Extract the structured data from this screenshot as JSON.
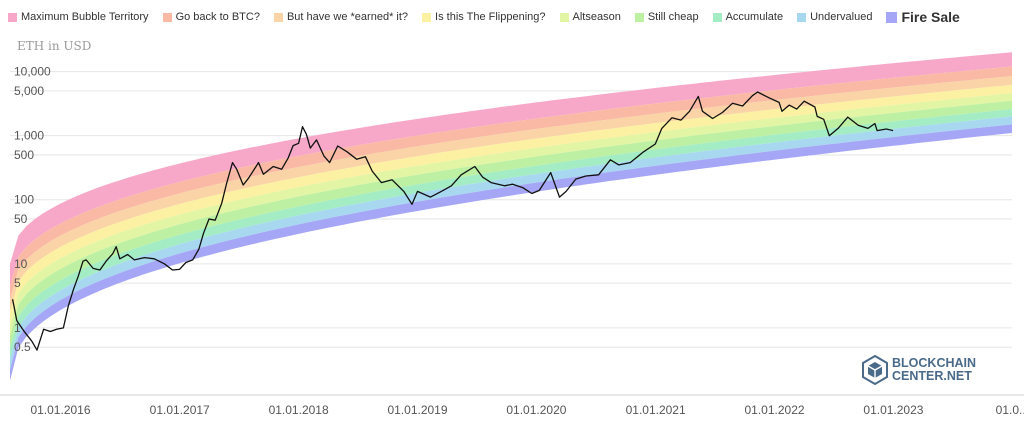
{
  "chart_data": {
    "type": "line",
    "title": "",
    "ylabel": "ETH in USD",
    "yscale": "log",
    "ylim": [
      0.1,
      40000
    ],
    "xlim": [
      "2015-07-30",
      "2023-12-31"
    ],
    "y_ticks": [
      {
        "v": 10000,
        "label": "10,000"
      },
      {
        "v": 5000,
        "label": "5,000"
      },
      {
        "v": 1000,
        "label": "1,000"
      },
      {
        "v": 500,
        "label": "500"
      },
      {
        "v": 100,
        "label": "100"
      },
      {
        "v": 50,
        "label": "50"
      },
      {
        "v": 10,
        "label": "10"
      },
      {
        "v": 5,
        "label": "5"
      },
      {
        "v": 1,
        "label": "1"
      },
      {
        "v": 0.5,
        "label": "0.5"
      }
    ],
    "x_ticks": [
      {
        "date": "2016-01-01",
        "label": "01.01.2016"
      },
      {
        "date": "2017-01-01",
        "label": "01.01.2017"
      },
      {
        "date": "2018-01-01",
        "label": "01.01.2018"
      },
      {
        "date": "2019-01-01",
        "label": "01.01.2019"
      },
      {
        "date": "2020-01-01",
        "label": "01.01.2020"
      },
      {
        "date": "2021-01-01",
        "label": "01.01.2021"
      },
      {
        "date": "2022-01-01",
        "label": "01.01.2022"
      },
      {
        "date": "2023-01-01",
        "label": "01.01.2023"
      },
      {
        "date": "2024-01-01",
        "label": "01.0..."
      }
    ],
    "bands": [
      {
        "name": "Maximum Bubble Territory",
        "color": "#f7a8c9",
        "upper": [
          [
            0.0,
            10.0
          ],
          [
            1.0,
            20000
          ]
        ],
        "lower": [
          [
            0.0,
            4.5
          ],
          [
            1.0,
            12000
          ]
        ]
      },
      {
        "name": "Go back to BTC?",
        "color": "#f9b9a5",
        "upper": [
          [
            0.0,
            4.5
          ],
          [
            1.0,
            12000
          ]
        ],
        "lower": [
          [
            0.0,
            2.8
          ],
          [
            1.0,
            8500
          ]
        ]
      },
      {
        "name": "But have we *earned* it?",
        "color": "#fad3a6",
        "upper": [
          [
            0.0,
            2.8
          ],
          [
            1.0,
            8500
          ]
        ],
        "lower": [
          [
            0.0,
            1.8
          ],
          [
            1.0,
            6200
          ]
        ]
      },
      {
        "name": "Is this The Flippening?",
        "color": "#fcf0a3",
        "upper": [
          [
            0.0,
            1.8
          ],
          [
            1.0,
            6200
          ]
        ],
        "lower": [
          [
            0.0,
            1.15
          ],
          [
            1.0,
            4600
          ]
        ]
      },
      {
        "name": "Altseason",
        "color": "#e2f5a4",
        "upper": [
          [
            0.0,
            1.15
          ],
          [
            1.0,
            4600
          ]
        ],
        "lower": [
          [
            0.0,
            0.75
          ],
          [
            1.0,
            3500
          ]
        ]
      },
      {
        "name": "Still cheap",
        "color": "#bdf0a3",
        "upper": [
          [
            0.0,
            0.75
          ],
          [
            1.0,
            3500
          ]
        ],
        "lower": [
          [
            0.0,
            0.48
          ],
          [
            1.0,
            2600
          ]
        ]
      },
      {
        "name": "Accumulate",
        "color": "#a3ecc4",
        "upper": [
          [
            0.0,
            0.48
          ],
          [
            1.0,
            2600
          ]
        ],
        "lower": [
          [
            0.0,
            0.32
          ],
          [
            1.0,
            2000
          ]
        ]
      },
      {
        "name": "Undervalued",
        "color": "#a8d8f0",
        "upper": [
          [
            0.0,
            0.32
          ],
          [
            1.0,
            2000
          ]
        ],
        "lower": [
          [
            0.0,
            0.22
          ],
          [
            1.0,
            1500
          ]
        ]
      },
      {
        "name": "Fire Sale",
        "color": "#a5a6f5",
        "upper": [
          [
            0.0,
            0.22
          ],
          [
            1.0,
            1500
          ]
        ],
        "lower": [
          [
            0.0,
            0.15
          ],
          [
            1.0,
            1100
          ]
        ]
      }
    ],
    "series": [
      {
        "color": "#111111",
        "points": [
          [
            "2015-08-07",
            2.8
          ],
          [
            "2015-08-20",
            1.3
          ],
          [
            "2015-09-10",
            0.9
          ],
          [
            "2015-10-05",
            0.62
          ],
          [
            "2015-10-21",
            0.45
          ],
          [
            "2015-11-10",
            0.95
          ],
          [
            "2015-12-01",
            0.88
          ],
          [
            "2015-12-20",
            0.95
          ],
          [
            "2016-01-10",
            1.0
          ],
          [
            "2016-01-25",
            2.2
          ],
          [
            "2016-02-10",
            4.0
          ],
          [
            "2016-02-25",
            6.5
          ],
          [
            "2016-03-10",
            11.0
          ],
          [
            "2016-03-20",
            11.5
          ],
          [
            "2016-04-10",
            8.5
          ],
          [
            "2016-05-01",
            8.0
          ],
          [
            "2016-05-20",
            11.0
          ],
          [
            "2016-06-10",
            14.5
          ],
          [
            "2016-06-20",
            18.5
          ],
          [
            "2016-07-01",
            12.0
          ],
          [
            "2016-07-25",
            14.0
          ],
          [
            "2016-08-15",
            11.5
          ],
          [
            "2016-09-15",
            12.5
          ],
          [
            "2016-10-15",
            12.0
          ],
          [
            "2016-11-15",
            10.0
          ],
          [
            "2016-12-10",
            8.0
          ],
          [
            "2016-12-31",
            8.2
          ],
          [
            "2017-01-20",
            10.5
          ],
          [
            "2017-02-10",
            11.5
          ],
          [
            "2017-03-01",
            17.0
          ],
          [
            "2017-03-15",
            30.0
          ],
          [
            "2017-04-01",
            50.0
          ],
          [
            "2017-04-20",
            48.0
          ],
          [
            "2017-05-10",
            88.0
          ],
          [
            "2017-05-25",
            180.0
          ],
          [
            "2017-06-12",
            380.0
          ],
          [
            "2017-06-25",
            300.0
          ],
          [
            "2017-07-15",
            170.0
          ],
          [
            "2017-08-01",
            220.0
          ],
          [
            "2017-08-31",
            380.0
          ],
          [
            "2017-09-15",
            250.0
          ],
          [
            "2017-10-15",
            330.0
          ],
          [
            "2017-11-10",
            300.0
          ],
          [
            "2017-11-30",
            450.0
          ],
          [
            "2017-12-15",
            700.0
          ],
          [
            "2018-01-01",
            760.0
          ],
          [
            "2018-01-13",
            1380.0
          ],
          [
            "2018-01-25",
            1050.0
          ],
          [
            "2018-02-06",
            640.0
          ],
          [
            "2018-02-25",
            860.0
          ],
          [
            "2018-03-20",
            480.0
          ],
          [
            "2018-04-06",
            380.0
          ],
          [
            "2018-05-01",
            690.0
          ],
          [
            "2018-05-30",
            560.0
          ],
          [
            "2018-06-28",
            430.0
          ],
          [
            "2018-07-25",
            470.0
          ],
          [
            "2018-08-15",
            280.0
          ],
          [
            "2018-09-12",
            185.0
          ],
          [
            "2018-10-15",
            205.0
          ],
          [
            "2018-11-20",
            135.0
          ],
          [
            "2018-12-15",
            85.0
          ],
          [
            "2019-01-01",
            135.0
          ],
          [
            "2019-02-10",
            110.0
          ],
          [
            "2019-03-15",
            135.0
          ],
          [
            "2019-04-15",
            165.0
          ],
          [
            "2019-05-15",
            245.0
          ],
          [
            "2019-06-26",
            330.0
          ],
          [
            "2019-07-20",
            225.0
          ],
          [
            "2019-08-15",
            185.0
          ],
          [
            "2019-09-25",
            165.0
          ],
          [
            "2019-10-20",
            175.0
          ],
          [
            "2019-11-20",
            155.0
          ],
          [
            "2019-12-18",
            125.0
          ],
          [
            "2020-01-10",
            140.0
          ],
          [
            "2020-02-14",
            265.0
          ],
          [
            "2020-03-12",
            110.0
          ],
          [
            "2020-04-01",
            135.0
          ],
          [
            "2020-05-01",
            210.0
          ],
          [
            "2020-06-01",
            235.0
          ],
          [
            "2020-07-10",
            245.0
          ],
          [
            "2020-08-15",
            420.0
          ],
          [
            "2020-09-10",
            350.0
          ],
          [
            "2020-10-15",
            380.0
          ],
          [
            "2020-11-25",
            560.0
          ],
          [
            "2020-12-31",
            740.0
          ],
          [
            "2021-01-20",
            1300.0
          ],
          [
            "2021-02-20",
            1900.0
          ],
          [
            "2021-03-20",
            1750.0
          ],
          [
            "2021-04-15",
            2400.0
          ],
          [
            "2021-05-12",
            4100.0
          ],
          [
            "2021-05-25",
            2400.0
          ],
          [
            "2021-06-25",
            1850.0
          ],
          [
            "2021-07-25",
            2300.0
          ],
          [
            "2021-08-25",
            3200.0
          ],
          [
            "2021-09-25",
            2900.0
          ],
          [
            "2021-10-25",
            4200.0
          ],
          [
            "2021-11-10",
            4800.0
          ],
          [
            "2021-12-15",
            3900.0
          ],
          [
            "2022-01-15",
            3300.0
          ],
          [
            "2022-01-24",
            2400.0
          ],
          [
            "2022-02-15",
            3000.0
          ],
          [
            "2022-03-10",
            2600.0
          ],
          [
            "2022-04-02",
            3450.0
          ],
          [
            "2022-05-05",
            2800.0
          ],
          [
            "2022-05-12",
            2000.0
          ],
          [
            "2022-06-01",
            1800.0
          ],
          [
            "2022-06-18",
            1000.0
          ],
          [
            "2022-07-15",
            1300.0
          ],
          [
            "2022-08-14",
            1950.0
          ],
          [
            "2022-09-15",
            1450.0
          ],
          [
            "2022-10-15",
            1300.0
          ],
          [
            "2022-11-05",
            1550.0
          ],
          [
            "2022-11-12",
            1200.0
          ],
          [
            "2022-12-10",
            1270.0
          ],
          [
            "2022-12-31",
            1200.0
          ]
        ]
      }
    ]
  },
  "legend": [
    {
      "label": "Maximum Bubble Territory",
      "color": "#f7a8c9",
      "emphasis": false
    },
    {
      "label": "Go back to BTC?",
      "color": "#f9b9a5",
      "emphasis": false
    },
    {
      "label": "But have we *earned* it?",
      "color": "#fad3a6",
      "emphasis": false
    },
    {
      "label": "Is this The Flippening?",
      "color": "#fcf0a3",
      "emphasis": false
    },
    {
      "label": "Altseason",
      "color": "#e2f5a4",
      "emphasis": false
    },
    {
      "label": "Still cheap",
      "color": "#bdf0a3",
      "emphasis": false
    },
    {
      "label": "Accumulate",
      "color": "#a3ecc4",
      "emphasis": false
    },
    {
      "label": "Undervalued",
      "color": "#a8d8f0",
      "emphasis": false
    },
    {
      "label": "Fire Sale",
      "color": "#a5a6f5",
      "emphasis": true
    }
  ],
  "logo": {
    "line1": "BLOCKCHAIN",
    "line2": "CENTER.NET",
    "icon": "cube-icon"
  }
}
